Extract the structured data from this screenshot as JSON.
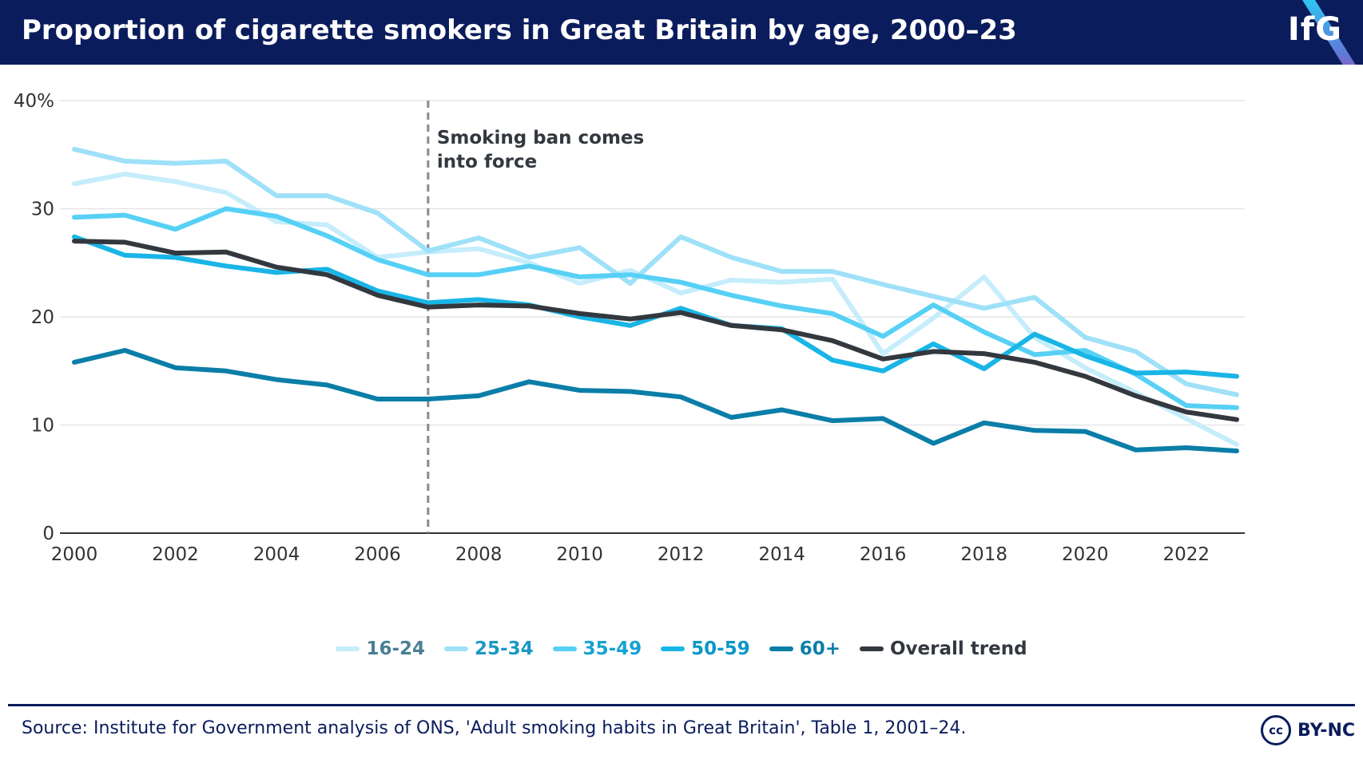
{
  "header": {
    "title": "Proportion of cigarette smokers in Great Britain by age, 2000–23",
    "logo": "IfG"
  },
  "chart_data": {
    "type": "line",
    "title": "Proportion of cigarette smokers in Great Britain by age, 2000–23",
    "xlabel": "",
    "ylabel": "",
    "xlim": [
      2000,
      2023
    ],
    "ylim": [
      0,
      40
    ],
    "y_ticks": [
      {
        "value": 0,
        "label": "0"
      },
      {
        "value": 10,
        "label": "10"
      },
      {
        "value": 20,
        "label": "20"
      },
      {
        "value": 30,
        "label": "30"
      },
      {
        "value": 40,
        "label": "40%"
      }
    ],
    "x_ticks": [
      {
        "value": 2000,
        "label": "2000"
      },
      {
        "value": 2002,
        "label": "2002"
      },
      {
        "value": 2004,
        "label": "2004"
      },
      {
        "value": 2006,
        "label": "2006"
      },
      {
        "value": 2008,
        "label": "2008"
      },
      {
        "value": 2010,
        "label": "2010"
      },
      {
        "value": 2012,
        "label": "2012"
      },
      {
        "value": 2014,
        "label": "2014"
      },
      {
        "value": 2016,
        "label": "2016"
      },
      {
        "value": 2018,
        "label": "2018"
      },
      {
        "value": 2020,
        "label": "2020"
      },
      {
        "value": 2022,
        "label": "2022"
      }
    ],
    "x": [
      2000,
      2001,
      2002,
      2003,
      2004,
      2005,
      2006,
      2007,
      2008,
      2009,
      2010,
      2011,
      2012,
      2013,
      2014,
      2015,
      2016,
      2017,
      2018,
      2019,
      2020,
      2021,
      2022,
      2023
    ],
    "series": [
      {
        "name": "16-24",
        "color": "#c5edfb",
        "label_color": "#4a7f93",
        "values": [
          32.3,
          33.2,
          32.5,
          31.5,
          28.8,
          28.5,
          25.5,
          26.0,
          26.3,
          25.0,
          23.1,
          24.3,
          22.2,
          23.4,
          23.2,
          23.5,
          16.6,
          19.9,
          23.7,
          18.1,
          15.3,
          13.0,
          10.6,
          8.2
        ]
      },
      {
        "name": "25-34",
        "color": "#9ee1f8",
        "label_color": "#1c97c4",
        "values": [
          35.5,
          34.4,
          34.2,
          34.4,
          31.2,
          31.2,
          29.6,
          26.1,
          27.3,
          25.5,
          26.4,
          23.1,
          27.4,
          25.5,
          24.2,
          24.2,
          23.0,
          21.9,
          20.8,
          21.8,
          18.1,
          16.8,
          13.8,
          12.8
        ]
      },
      {
        "name": "35-49",
        "color": "#57d0f5",
        "label_color": "#14a3d2",
        "values": [
          29.2,
          29.4,
          28.1,
          30.0,
          29.3,
          27.5,
          25.3,
          23.9,
          23.9,
          24.7,
          23.7,
          23.9,
          23.2,
          22.0,
          21.0,
          20.3,
          18.2,
          21.1,
          18.6,
          16.5,
          16.9,
          14.7,
          11.8,
          11.6
        ]
      },
      {
        "name": "50-59",
        "color": "#19b5e6",
        "label_color": "#0a97c8",
        "values": [
          27.4,
          25.7,
          25.5,
          24.7,
          24.1,
          24.4,
          22.4,
          21.3,
          21.6,
          21.1,
          20.0,
          19.2,
          20.8,
          19.2,
          18.9,
          16.0,
          15.0,
          17.5,
          15.2,
          18.4,
          16.4,
          14.8,
          14.9,
          14.5
        ]
      },
      {
        "name": "60+",
        "color": "#0b7ea8",
        "label_color": "#0b7ea8",
        "values": [
          15.8,
          16.9,
          15.3,
          15.0,
          14.2,
          13.7,
          12.4,
          12.4,
          12.7,
          14.0,
          13.2,
          13.1,
          12.6,
          10.7,
          11.4,
          10.4,
          10.6,
          8.3,
          10.2,
          9.5,
          9.4,
          7.7,
          7.9,
          7.6
        ]
      },
      {
        "name": "Overall trend",
        "color": "#33383f",
        "label_color": "#33383f",
        "values": [
          27.0,
          26.9,
          25.9,
          26.0,
          24.6,
          23.9,
          22.0,
          20.9,
          21.1,
          21.0,
          20.3,
          19.8,
          20.4,
          19.2,
          18.8,
          17.8,
          16.1,
          16.8,
          16.6,
          15.8,
          14.5,
          12.7,
          11.2,
          10.5
        ]
      }
    ],
    "annotation": {
      "x": 2007,
      "lines": [
        "Smoking ban comes",
        "into force"
      ]
    },
    "grid": true,
    "legend": "bottom-center"
  },
  "footer": {
    "source": "Source: Institute for Government analysis of ONS, 'Adult smoking habits in Great Britain', Table 1, 2001–24.",
    "license_badge": "cc",
    "license": "BY-NC"
  }
}
